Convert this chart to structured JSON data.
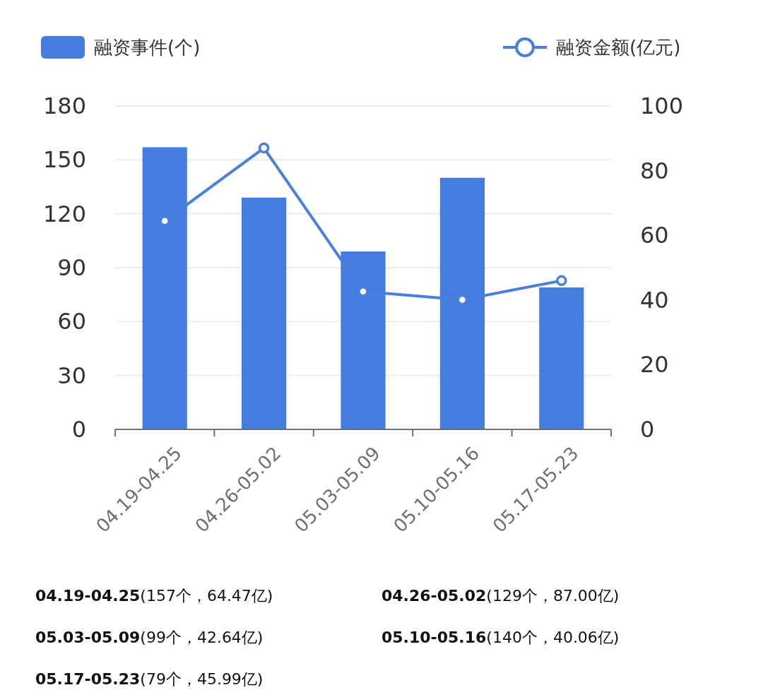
{
  "chart_data": {
    "type": "bar",
    "categories": [
      "04.19-04.25",
      "04.26-05.02",
      "05.03-05.09",
      "05.10-05.16",
      "05.17-05.23"
    ],
    "series": [
      {
        "name": "融资事件(个)",
        "color": "#447ce0",
        "values": [
          157,
          129,
          99,
          140,
          79
        ]
      },
      {
        "name": "融资金额(亿元)",
        "type": "line",
        "axis": "y2",
        "color": "#4a7fdc",
        "marker": "circle",
        "values": [
          64.47,
          87.0,
          42.64,
          40.06,
          45.99
        ]
      }
    ],
    "ylim": [
      0,
      180
    ],
    "yticks": [
      0,
      30,
      60,
      90,
      120,
      150,
      180
    ],
    "y2lim": [
      0,
      100
    ],
    "y2ticks": [
      0,
      20,
      40,
      60,
      80,
      100
    ],
    "grid": "y",
    "legend": "top",
    "annotations": [
      "04.19-04.25(157个，64.47亿)",
      "04.26-05.02(129个，87.00亿)",
      "05.03-05.09(99个，42.64亿)",
      "05.10-05.16(140个，40.06亿)",
      "05.17-05.23(79个，45.99亿)"
    ]
  }
}
